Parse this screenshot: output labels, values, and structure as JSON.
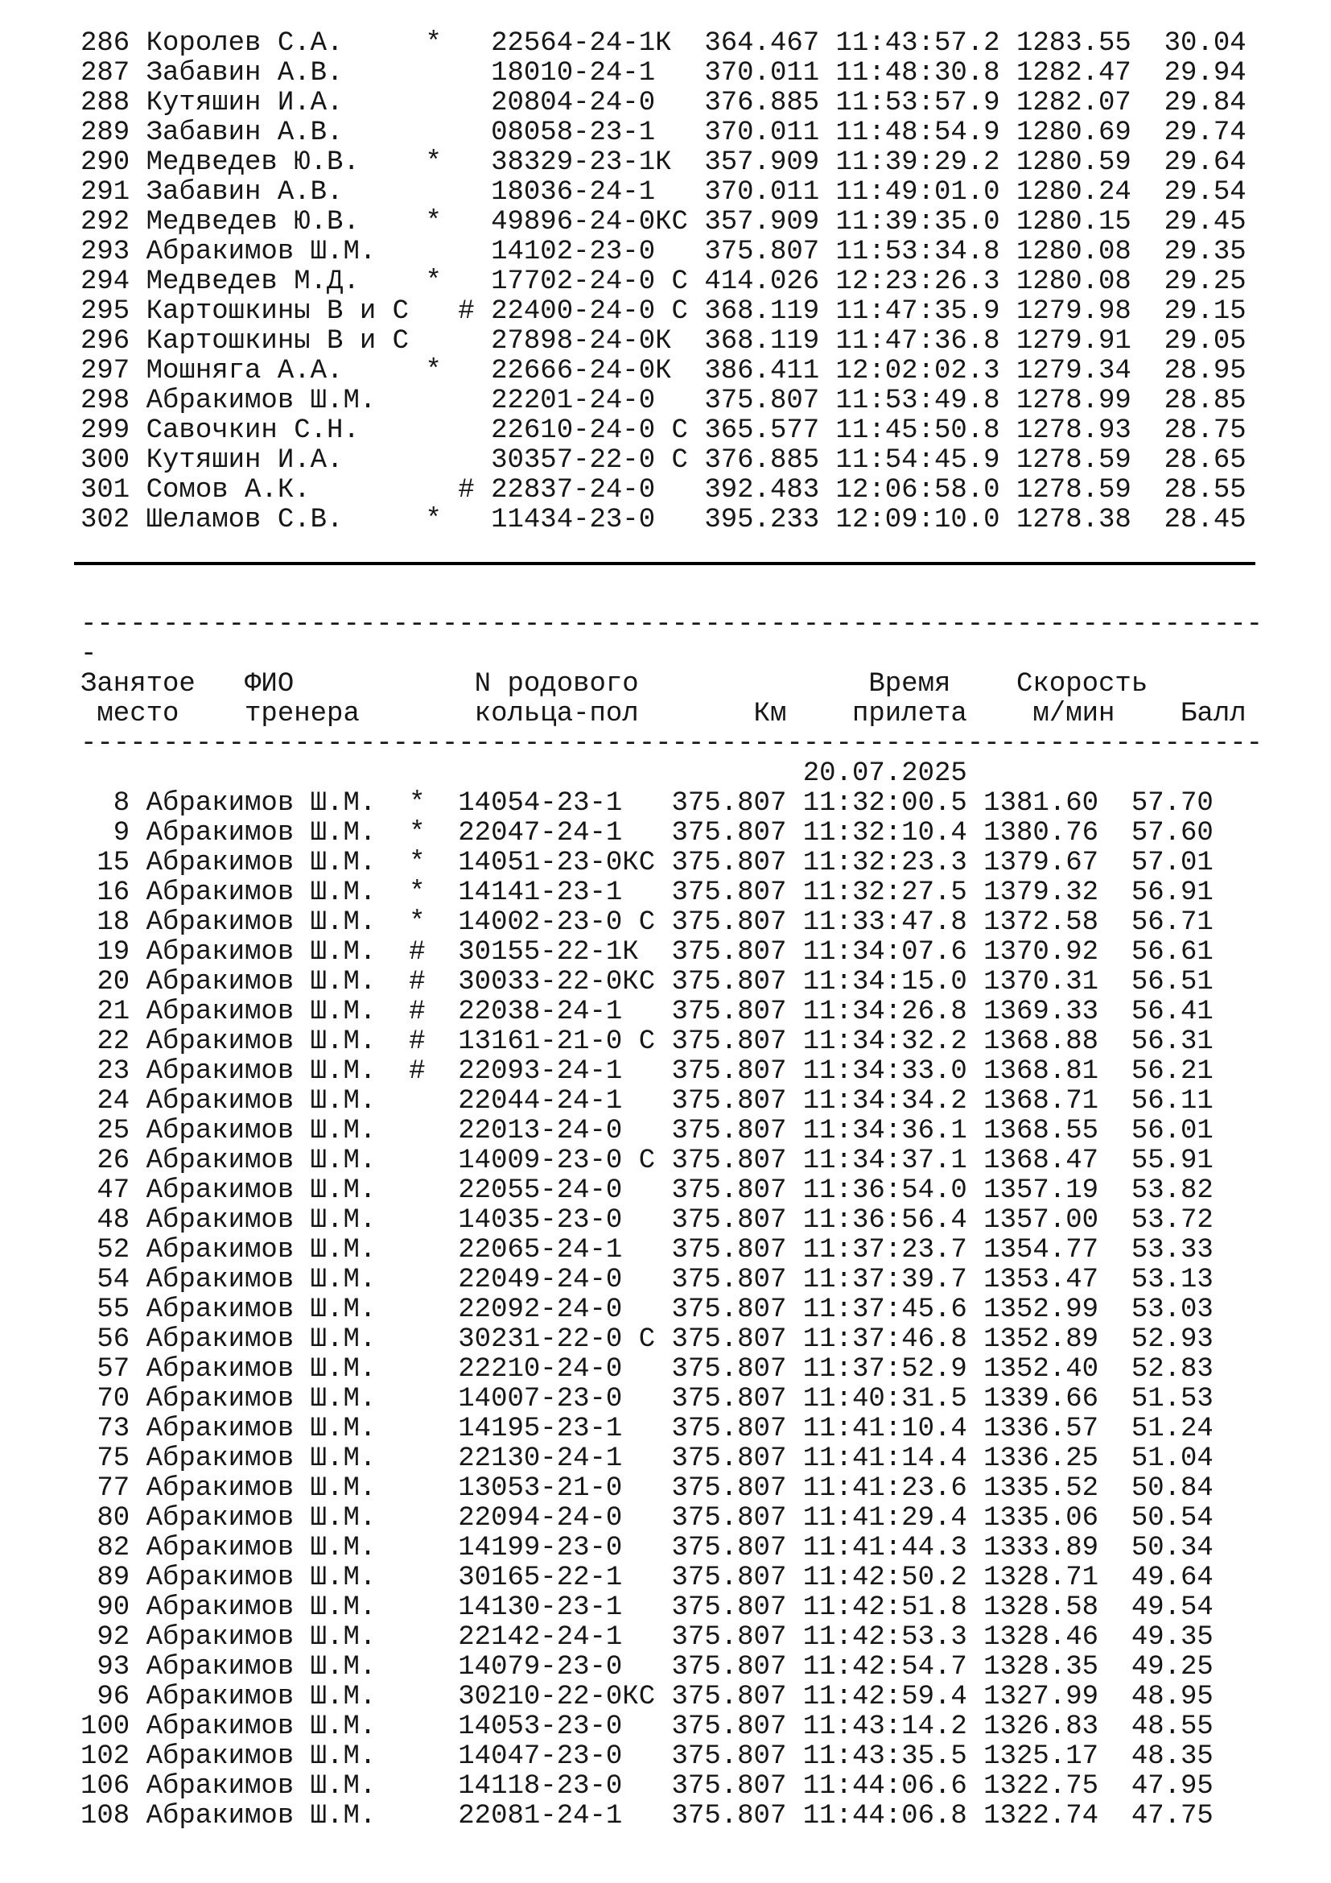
{
  "document": {
    "date": "20.07.2025",
    "stray_dash": "-",
    "separator": {
      "char": "-",
      "count": 72
    },
    "header": {
      "columns": [
        "Занятое место",
        "ФИО тренера",
        "N родового кольца-пол",
        "Км",
        "Время прилета",
        "Скорость м/мин",
        "Балл"
      ],
      "line1": "Занятое   ФИО           N родового              Время    Скорость",
      "line2": " место    тренера       кольца-пол       Км    прилета    м/мин    Балл"
    },
    "table1_rows": [
      {
        "place": 286,
        "name": "Королев С.А.",
        "mark": "*",
        "ring": "22564-24-1К",
        "km": "364.467",
        "time": "11:43:57.2",
        "speed": "1283.55",
        "score": "30.04"
      },
      {
        "place": 287,
        "name": "Забавин А.В.",
        "mark": "",
        "ring": "18010-24-1",
        "km": "370.011",
        "time": "11:48:30.8",
        "speed": "1282.47",
        "score": "29.94"
      },
      {
        "place": 288,
        "name": "Кутяшин И.А.",
        "mark": "",
        "ring": "20804-24-0",
        "km": "376.885",
        "time": "11:53:57.9",
        "speed": "1282.07",
        "score": "29.84"
      },
      {
        "place": 289,
        "name": "Забавин А.В.",
        "mark": "",
        "ring": "08058-23-1",
        "km": "370.011",
        "time": "11:48:54.9",
        "speed": "1280.69",
        "score": "29.74"
      },
      {
        "place": 290,
        "name": "Медведев Ю.В.",
        "mark": "*",
        "ring": "38329-23-1К",
        "km": "357.909",
        "time": "11:39:29.2",
        "speed": "1280.59",
        "score": "29.64"
      },
      {
        "place": 291,
        "name": "Забавин А.В.",
        "mark": "",
        "ring": "18036-24-1",
        "km": "370.011",
        "time": "11:49:01.0",
        "speed": "1280.24",
        "score": "29.54"
      },
      {
        "place": 292,
        "name": "Медведев Ю.В.",
        "mark": "*",
        "ring": "49896-24-0КС",
        "km": "357.909",
        "time": "11:39:35.0",
        "speed": "1280.15",
        "score": "29.45"
      },
      {
        "place": 293,
        "name": "Абракимов Ш.М.",
        "mark": "",
        "ring": "14102-23-0",
        "km": "375.807",
        "time": "11:53:34.8",
        "speed": "1280.08",
        "score": "29.35"
      },
      {
        "place": 294,
        "name": "Медведев М.Д.",
        "mark": "*",
        "ring": "17702-24-0 С",
        "km": "414.026",
        "time": "12:23:26.3",
        "speed": "1280.08",
        "score": "29.25"
      },
      {
        "place": 295,
        "name": "Картошкины В и С",
        "mark": "#",
        "ring": "22400-24-0 С",
        "km": "368.119",
        "time": "11:47:35.9",
        "speed": "1279.98",
        "score": "29.15"
      },
      {
        "place": 296,
        "name": "Картошкины В и С",
        "mark": "",
        "ring": "27898-24-0К",
        "km": "368.119",
        "time": "11:47:36.8",
        "speed": "1279.91",
        "score": "29.05"
      },
      {
        "place": 297,
        "name": "Мошняга А.А.",
        "mark": "*",
        "ring": "22666-24-0К",
        "km": "386.411",
        "time": "12:02:02.3",
        "speed": "1279.34",
        "score": "28.95"
      },
      {
        "place": 298,
        "name": "Абракимов Ш.М.",
        "mark": "",
        "ring": "22201-24-0",
        "km": "375.807",
        "time": "11:53:49.8",
        "speed": "1278.99",
        "score": "28.85"
      },
      {
        "place": 299,
        "name": "Савочкин С.Н.",
        "mark": "",
        "ring": "22610-24-0 С",
        "km": "365.577",
        "time": "11:45:50.8",
        "speed": "1278.93",
        "score": "28.75"
      },
      {
        "place": 300,
        "name": "Кутяшин И.А.",
        "mark": "",
        "ring": "30357-22-0 С",
        "km": "376.885",
        "time": "11:54:45.9",
        "speed": "1278.59",
        "score": "28.65"
      },
      {
        "place": 301,
        "name": "Сомов А.К.",
        "mark": "#",
        "ring": "22837-24-0",
        "km": "392.483",
        "time": "12:06:58.0",
        "speed": "1278.59",
        "score": "28.55"
      },
      {
        "place": 302,
        "name": "Шеламов С.В.",
        "mark": "*",
        "ring": "11434-23-0",
        "km": "395.233",
        "time": "12:09:10.0",
        "speed": "1278.38",
        "score": "28.45"
      }
    ],
    "table2_rows": [
      {
        "place": 8,
        "name": "Абракимов Ш.М.",
        "mark": "*",
        "ring": "14054-23-1",
        "km": "375.807",
        "time": "11:32:00.5",
        "speed": "1381.60",
        "score": "57.70"
      },
      {
        "place": 9,
        "name": "Абракимов Ш.М.",
        "mark": "*",
        "ring": "22047-24-1",
        "km": "375.807",
        "time": "11:32:10.4",
        "speed": "1380.76",
        "score": "57.60"
      },
      {
        "place": 15,
        "name": "Абракимов Ш.М.",
        "mark": "*",
        "ring": "14051-23-0КС",
        "km": "375.807",
        "time": "11:32:23.3",
        "speed": "1379.67",
        "score": "57.01"
      },
      {
        "place": 16,
        "name": "Абракимов Ш.М.",
        "mark": "*",
        "ring": "14141-23-1",
        "km": "375.807",
        "time": "11:32:27.5",
        "speed": "1379.32",
        "score": "56.91"
      },
      {
        "place": 18,
        "name": "Абракимов Ш.М.",
        "mark": "*",
        "ring": "14002-23-0 С",
        "km": "375.807",
        "time": "11:33:47.8",
        "speed": "1372.58",
        "score": "56.71"
      },
      {
        "place": 19,
        "name": "Абракимов Ш.М.",
        "mark": "#",
        "ring": "30155-22-1К",
        "km": "375.807",
        "time": "11:34:07.6",
        "speed": "1370.92",
        "score": "56.61"
      },
      {
        "place": 20,
        "name": "Абракимов Ш.М.",
        "mark": "#",
        "ring": "30033-22-0КС",
        "km": "375.807",
        "time": "11:34:15.0",
        "speed": "1370.31",
        "score": "56.51"
      },
      {
        "place": 21,
        "name": "Абракимов Ш.М.",
        "mark": "#",
        "ring": "22038-24-1",
        "km": "375.807",
        "time": "11:34:26.8",
        "speed": "1369.33",
        "score": "56.41"
      },
      {
        "place": 22,
        "name": "Абракимов Ш.М.",
        "mark": "#",
        "ring": "13161-21-0 С",
        "km": "375.807",
        "time": "11:34:32.2",
        "speed": "1368.88",
        "score": "56.31"
      },
      {
        "place": 23,
        "name": "Абракимов Ш.М.",
        "mark": "#",
        "ring": "22093-24-1",
        "km": "375.807",
        "time": "11:34:33.0",
        "speed": "1368.81",
        "score": "56.21"
      },
      {
        "place": 24,
        "name": "Абракимов Ш.М.",
        "mark": "",
        "ring": "22044-24-1",
        "km": "375.807",
        "time": "11:34:34.2",
        "speed": "1368.71",
        "score": "56.11"
      },
      {
        "place": 25,
        "name": "Абракимов Ш.М.",
        "mark": "",
        "ring": "22013-24-0",
        "km": "375.807",
        "time": "11:34:36.1",
        "speed": "1368.55",
        "score": "56.01"
      },
      {
        "place": 26,
        "name": "Абракимов Ш.М.",
        "mark": "",
        "ring": "14009-23-0 С",
        "km": "375.807",
        "time": "11:34:37.1",
        "speed": "1368.47",
        "score": "55.91"
      },
      {
        "place": 47,
        "name": "Абракимов Ш.М.",
        "mark": "",
        "ring": "22055-24-0",
        "km": "375.807",
        "time": "11:36:54.0",
        "speed": "1357.19",
        "score": "53.82"
      },
      {
        "place": 48,
        "name": "Абракимов Ш.М.",
        "mark": "",
        "ring": "14035-23-0",
        "km": "375.807",
        "time": "11:36:56.4",
        "speed": "1357.00",
        "score": "53.72"
      },
      {
        "place": 52,
        "name": "Абракимов Ш.М.",
        "mark": "",
        "ring": "22065-24-1",
        "km": "375.807",
        "time": "11:37:23.7",
        "speed": "1354.77",
        "score": "53.33"
      },
      {
        "place": 54,
        "name": "Абракимов Ш.М.",
        "mark": "",
        "ring": "22049-24-0",
        "km": "375.807",
        "time": "11:37:39.7",
        "speed": "1353.47",
        "score": "53.13"
      },
      {
        "place": 55,
        "name": "Абракимов Ш.М.",
        "mark": "",
        "ring": "22092-24-0",
        "km": "375.807",
        "time": "11:37:45.6",
        "speed": "1352.99",
        "score": "53.03"
      },
      {
        "place": 56,
        "name": "Абракимов Ш.М.",
        "mark": "",
        "ring": "30231-22-0 С",
        "km": "375.807",
        "time": "11:37:46.8",
        "speed": "1352.89",
        "score": "52.93"
      },
      {
        "place": 57,
        "name": "Абракимов Ш.М.",
        "mark": "",
        "ring": "22210-24-0",
        "km": "375.807",
        "time": "11:37:52.9",
        "speed": "1352.40",
        "score": "52.83"
      },
      {
        "place": 70,
        "name": "Абракимов Ш.М.",
        "mark": "",
        "ring": "14007-23-0",
        "km": "375.807",
        "time": "11:40:31.5",
        "speed": "1339.66",
        "score": "51.53"
      },
      {
        "place": 73,
        "name": "Абракимов Ш.М.",
        "mark": "",
        "ring": "14195-23-1",
        "km": "375.807",
        "time": "11:41:10.4",
        "speed": "1336.57",
        "score": "51.24"
      },
      {
        "place": 75,
        "name": "Абракимов Ш.М.",
        "mark": "",
        "ring": "22130-24-1",
        "km": "375.807",
        "time": "11:41:14.4",
        "speed": "1336.25",
        "score": "51.04"
      },
      {
        "place": 77,
        "name": "Абракимов Ш.М.",
        "mark": "",
        "ring": "13053-21-0",
        "km": "375.807",
        "time": "11:41:23.6",
        "speed": "1335.52",
        "score": "50.84"
      },
      {
        "place": 80,
        "name": "Абракимов Ш.М.",
        "mark": "",
        "ring": "22094-24-0",
        "km": "375.807",
        "time": "11:41:29.4",
        "speed": "1335.06",
        "score": "50.54"
      },
      {
        "place": 82,
        "name": "Абракимов Ш.М.",
        "mark": "",
        "ring": "14199-23-0",
        "km": "375.807",
        "time": "11:41:44.3",
        "speed": "1333.89",
        "score": "50.34"
      },
      {
        "place": 89,
        "name": "Абракимов Ш.М.",
        "mark": "",
        "ring": "30165-22-1",
        "km": "375.807",
        "time": "11:42:50.2",
        "speed": "1328.71",
        "score": "49.64"
      },
      {
        "place": 90,
        "name": "Абракимов Ш.М.",
        "mark": "",
        "ring": "14130-23-1",
        "km": "375.807",
        "time": "11:42:51.8",
        "speed": "1328.58",
        "score": "49.54"
      },
      {
        "place": 92,
        "name": "Абракимов Ш.М.",
        "mark": "",
        "ring": "22142-24-1",
        "km": "375.807",
        "time": "11:42:53.3",
        "speed": "1328.46",
        "score": "49.35"
      },
      {
        "place": 93,
        "name": "Абракимов Ш.М.",
        "mark": "",
        "ring": "14079-23-0",
        "km": "375.807",
        "time": "11:42:54.7",
        "speed": "1328.35",
        "score": "49.25"
      },
      {
        "place": 96,
        "name": "Абракимов Ш.М.",
        "mark": "",
        "ring": "30210-22-0КС",
        "km": "375.807",
        "time": "11:42:59.4",
        "speed": "1327.99",
        "score": "48.95"
      },
      {
        "place": 100,
        "name": "Абракимов Ш.М.",
        "mark": "",
        "ring": "14053-23-0",
        "km": "375.807",
        "time": "11:43:14.2",
        "speed": "1326.83",
        "score": "48.55"
      },
      {
        "place": 102,
        "name": "Абракимов Ш.М.",
        "mark": "",
        "ring": "14047-23-0",
        "km": "375.807",
        "time": "11:43:35.5",
        "speed": "1325.17",
        "score": "48.35"
      },
      {
        "place": 106,
        "name": "Абракимов Ш.М.",
        "mark": "",
        "ring": "14118-23-0",
        "km": "375.807",
        "time": "11:44:06.6",
        "speed": "1322.75",
        "score": "47.95"
      },
      {
        "place": 108,
        "name": "Абракимов Ш.М.",
        "mark": "",
        "ring": "22081-24-1",
        "km": "375.807",
        "time": "11:44:06.8",
        "speed": "1322.74",
        "score": "47.75"
      }
    ]
  }
}
